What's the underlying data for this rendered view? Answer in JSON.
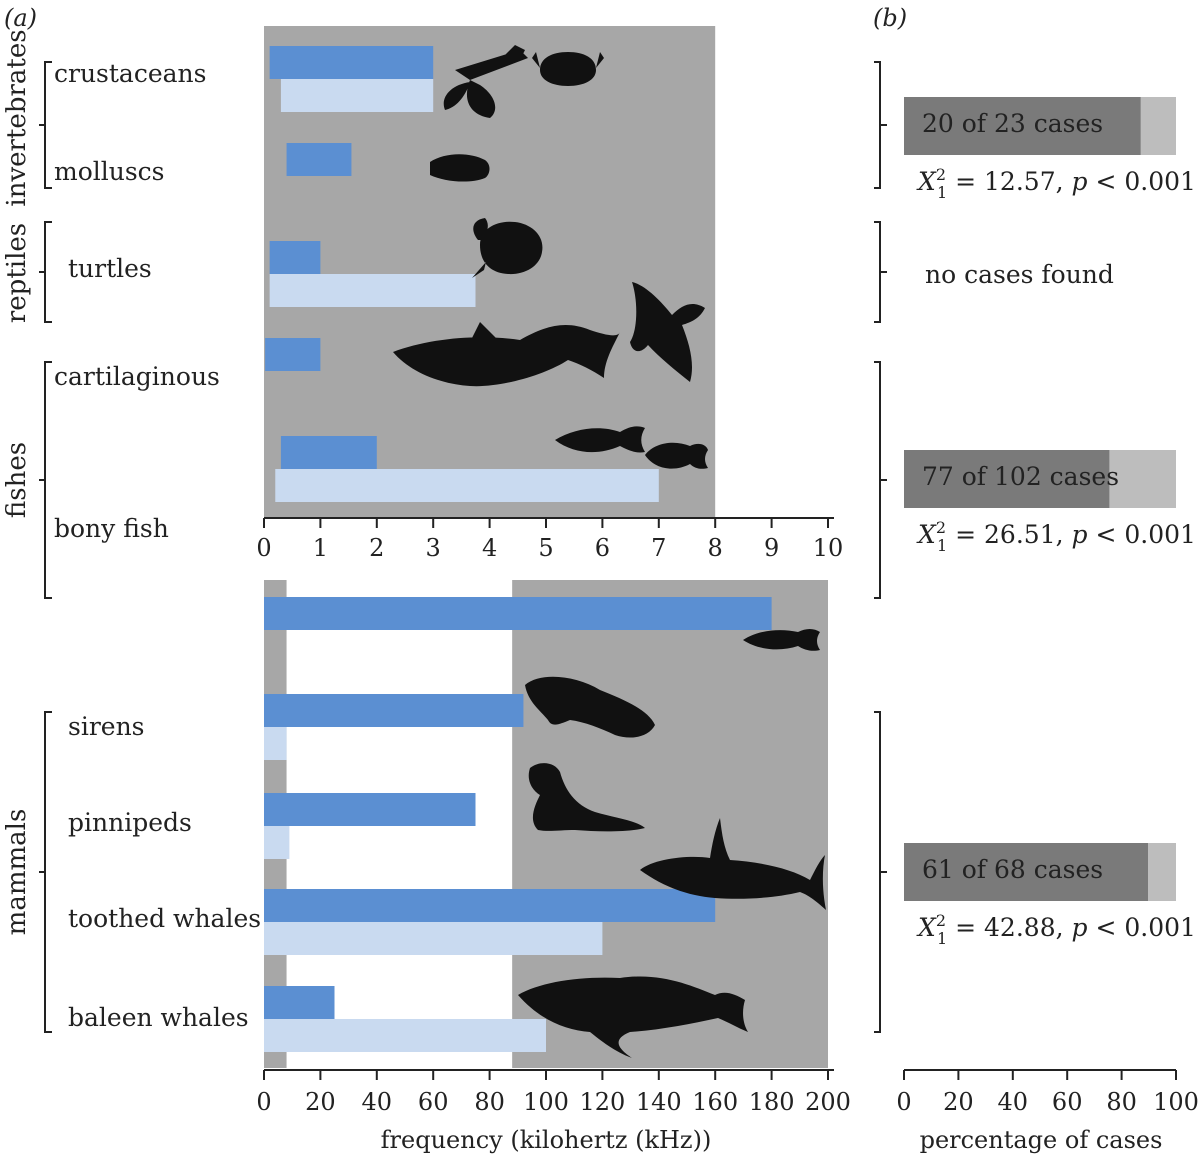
{
  "panel_labels": {
    "a": "(a)",
    "b": "(b)"
  },
  "colors": {
    "produce": "#5b8fd2",
    "hear": "#c9daf0",
    "shade": "#a7a7a7",
    "case_dark": "#7a7a7a",
    "case_light": "#bdbdbd",
    "axis": "#222222"
  },
  "groups": {
    "invertebrates": "invertebrates",
    "reptiles": "reptiles",
    "fishes": "fishes",
    "mammals": "mammals"
  },
  "categories": {
    "crustaceans": "crustaceans",
    "molluscs": "molluscs",
    "turtles": "turtles",
    "cartilaginous": "cartilaginous",
    "bony_fish": "bony fish",
    "sirens": "sirens",
    "pinnipeds": "pinnipeds",
    "toothed_whales": "toothed whales",
    "baleen_whales": "baleen whales"
  },
  "silhouettes": [
    "lobster-icon",
    "crab-icon",
    "squid-icon",
    "turtle-icon",
    "manta-ray-icon",
    "shark-icon",
    "tuna-icon",
    "clownfish-icon",
    "fish-icon",
    "manatee-icon",
    "seal-icon",
    "orca-icon",
    "humpback-whale-icon"
  ],
  "chart_data": [
    {
      "type": "bar",
      "orientation": "horizontal",
      "xlabel": "",
      "xlim": [
        0,
        10
      ],
      "xticks": [
        "0",
        "1",
        "2",
        "3",
        "4",
        "5",
        "6",
        "7",
        "8",
        "9",
        "10"
      ],
      "shaded_range": [
        0,
        8
      ],
      "bars": [
        {
          "category": "crustaceans",
          "kind": "produce",
          "range": [
            0.1,
            3.0
          ]
        },
        {
          "category": "crustaceans",
          "kind": "hear",
          "range": [
            0.3,
            3.0
          ]
        },
        {
          "category": "molluscs",
          "kind": "produce",
          "range": [
            0.4,
            1.55
          ]
        },
        {
          "category": "turtles",
          "kind": "produce",
          "range": [
            0.1,
            1.0
          ]
        },
        {
          "category": "turtles",
          "kind": "hear",
          "range": [
            0.1,
            3.75
          ]
        },
        {
          "category": "cartilaginous",
          "kind": "produce",
          "range": [
            0.02,
            1.0
          ]
        },
        {
          "category": "bony fish",
          "kind": "produce",
          "range": [
            0.3,
            2.0
          ]
        },
        {
          "category": "bony fish",
          "kind": "hear",
          "range": [
            0.2,
            7.0
          ]
        }
      ]
    },
    {
      "type": "bar",
      "orientation": "horizontal",
      "xlabel": "frequency (kilohertz (kHz))",
      "xlim": [
        0,
        200
      ],
      "xticks": [
        "0",
        "20",
        "40",
        "60",
        "80",
        "100",
        "120",
        "140",
        "160",
        "180",
        "200"
      ],
      "shaded_ranges": [
        [
          0,
          8
        ],
        [
          88,
          200
        ]
      ],
      "bars": [
        {
          "category": "bony fish",
          "kind": "produce",
          "range": [
            0,
            180
          ]
        },
        {
          "category": "sirens",
          "kind": "produce",
          "range": [
            0,
            92
          ]
        },
        {
          "category": "sirens",
          "kind": "hear",
          "range": [
            0,
            8
          ]
        },
        {
          "category": "pinnipeds",
          "kind": "produce",
          "range": [
            0,
            75
          ]
        },
        {
          "category": "pinnipeds",
          "kind": "hear",
          "range": [
            0,
            9
          ]
        },
        {
          "category": "toothed whales",
          "kind": "produce",
          "range": [
            0,
            160
          ]
        },
        {
          "category": "toothed whales",
          "kind": "hear",
          "range": [
            0,
            120
          ]
        },
        {
          "category": "baleen whales",
          "kind": "produce",
          "range": [
            0,
            25
          ]
        },
        {
          "category": "baleen whales",
          "kind": "hear",
          "range": [
            0,
            100
          ]
        }
      ]
    },
    {
      "type": "bar",
      "orientation": "horizontal",
      "stacked": true,
      "xlabel": "percentage of cases",
      "xlim": [
        0,
        100
      ],
      "xticks": [
        "0",
        "20",
        "40",
        "60",
        "80",
        "100"
      ],
      "bars": [
        {
          "group": "invertebrates",
          "label": "20 of 23 cases",
          "percent": 87,
          "stat_value": "= 12.57,",
          "p": "< 0.001"
        },
        {
          "group": "reptiles",
          "label": "no cases found"
        },
        {
          "group": "fishes",
          "label": "77 of 102 cases",
          "percent": 75.5,
          "stat_value": "= 26.51,",
          "p": "< 0.001"
        },
        {
          "group": "mammals",
          "label": "61 of 68 cases",
          "percent": 89.7,
          "stat_value": "= 42.88,",
          "p": "< 0.001"
        }
      ],
      "stat_symbol": "X",
      "stat_sub": "1",
      "stat_sup": "2",
      "p_symbol": "p"
    }
  ]
}
